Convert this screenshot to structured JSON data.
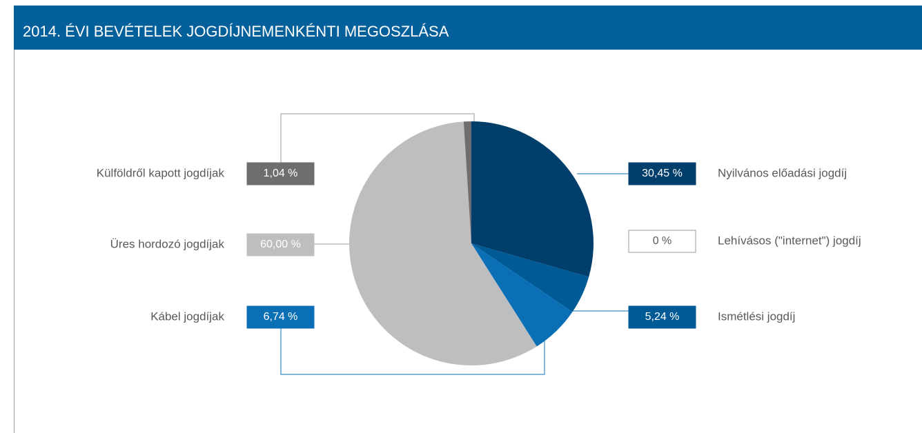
{
  "chart_data": {
    "type": "pie",
    "title": "2014. ÉVI BEVÉTELEK JOGDÍJNEMENKÉNTI MEGOSZLÁSA",
    "categories": [
      "Nyilvános előadási jogdíj",
      "Lehívásos (\"internet\") jogdíj",
      "Ismétlési jogdíj",
      "Kábel jogdíjak",
      "Üres hordozó jogdíjak",
      "Külföldről kapott jogdíjak"
    ],
    "values": [
      30.45,
      0,
      5.24,
      6.74,
      60.0,
      1.04
    ],
    "value_labels": [
      "30,45 %",
      "0 %",
      "5,24 %",
      "6,74 %",
      "60,00 %",
      "1,04 %"
    ],
    "colors": [
      "#003f6b",
      "#ffffff",
      "#005a96",
      "#0a6fb5",
      "#bcbec0",
      "#6d6e70"
    ]
  }
}
